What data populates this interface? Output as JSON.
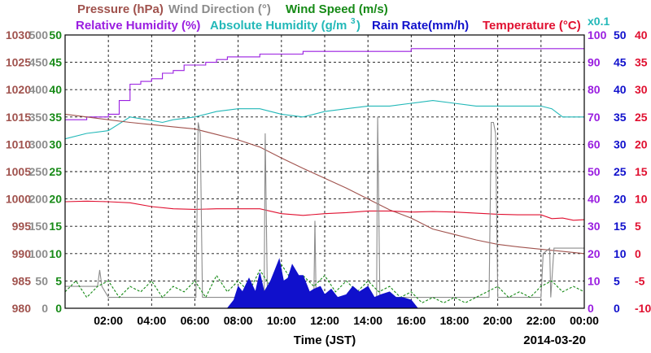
{
  "header": {
    "row1": [
      {
        "key": "pressure",
        "text": "Pressure (hPa)",
        "color": "#a0524d"
      },
      {
        "key": "wind_direction",
        "text": "Wind Direction (°)",
        "color": "#8c8c8c"
      },
      {
        "key": "wind_speed",
        "text": "Wind Speed (m/s)",
        "color": "#168a16"
      }
    ],
    "row2": [
      {
        "key": "relative_humidity",
        "text": "Relative Humidity (%)",
        "color": "#9a1ee0"
      },
      {
        "key": "absolute_humidity",
        "text": "Absolute Humidity (g/m",
        "sup": "3",
        "tail": ")",
        "color": "#22b8b8"
      },
      {
        "key": "rain_rate",
        "text": "Rain Rate(mm/h)",
        "color": "#1010cc"
      },
      {
        "key": "temperature",
        "text": "Temperature (°C)",
        "color": "#e01030"
      }
    ],
    "x01": {
      "text": "x0.1",
      "color": "#22b8b8"
    }
  },
  "footer": {
    "xlabel": "Time (JST)",
    "date": "2014-03-20"
  },
  "chart_data": {
    "type": "line",
    "x_unit": "hour",
    "xlim": [
      0,
      24
    ],
    "x_ticks": [
      2,
      4,
      6,
      8,
      10,
      12,
      14,
      16,
      18,
      20,
      22,
      24
    ],
    "x_tick_labels": [
      "02:00",
      "04:00",
      "06:00",
      "08:00",
      "10:00",
      "12:00",
      "14:00",
      "16:00",
      "18:00",
      "20:00",
      "22:00",
      "00:00"
    ],
    "grid": true,
    "axes": [
      {
        "name": "Pressure (hPa)",
        "side": "left",
        "color": "#a0524d",
        "min": 980,
        "max": 1030,
        "ticks": [
          980,
          985,
          990,
          995,
          1000,
          1005,
          1010,
          1015,
          1020,
          1025,
          1030
        ]
      },
      {
        "name": "Wind Direction (°)",
        "side": "left",
        "color": "#8c8c8c",
        "min": 0,
        "max": 500,
        "ticks": [
          0,
          50,
          100,
          150,
          200,
          250,
          300,
          350,
          400,
          450,
          500
        ]
      },
      {
        "name": "Wind Speed (m/s)",
        "side": "left",
        "color": "#168a16",
        "min": 0,
        "max": 50,
        "ticks": [
          0,
          5,
          10,
          15,
          20,
          25,
          30,
          35,
          40,
          45,
          50
        ]
      },
      {
        "name": "Relative Humidity (%)",
        "side": "right",
        "color": "#9a1ee0",
        "min": 0,
        "max": 100,
        "ticks": [
          0,
          10,
          20,
          30,
          40,
          50,
          60,
          70,
          80,
          90,
          100
        ]
      },
      {
        "name": "Rain Rate(mm/h)",
        "side": "right",
        "color": "#1010cc",
        "min": 0,
        "max": 50,
        "ticks": [
          0,
          5,
          10,
          15,
          20,
          25,
          30,
          35,
          40,
          45,
          50
        ]
      },
      {
        "name": "Temperature (°C)",
        "side": "right",
        "color": "#e01030",
        "min": -10,
        "max": 40,
        "ticks": [
          -10,
          -5,
          0,
          5,
          10,
          15,
          20,
          25,
          30,
          35,
          40
        ]
      }
    ],
    "series": [
      {
        "name": "Relative Humidity (%)",
        "axis": "Relative Humidity (%)",
        "color": "#9a1ee0",
        "style": "step",
        "x": [
          0,
          1,
          2,
          2.5,
          3,
          3.5,
          4,
          4.5,
          5,
          5.5,
          6,
          6.5,
          7,
          7.5,
          8,
          8.5,
          9,
          9.5,
          10,
          11,
          12,
          13,
          14,
          15,
          16,
          17,
          18,
          19,
          20,
          21,
          22,
          23,
          24
        ],
        "y": [
          69,
          70,
          71,
          76,
          82,
          83,
          84,
          86,
          87,
          89,
          89,
          90,
          91,
          92,
          92,
          92,
          93,
          93,
          93,
          94,
          94,
          94,
          94,
          94,
          95,
          95,
          95,
          95,
          95,
          95,
          95,
          95,
          95
        ]
      },
      {
        "name": "Absolute Humidity (g/m3) x0.1",
        "axis": "Relative Humidity (%)",
        "color": "#22b8b8",
        "style": "line",
        "x": [
          0,
          1,
          2,
          3,
          3.8,
          4.5,
          5,
          6,
          7,
          8,
          9,
          10,
          11,
          12,
          13,
          14,
          14.5,
          15,
          16,
          17,
          18,
          19,
          20,
          21,
          22,
          22.5,
          23,
          23.5,
          24
        ],
        "y": [
          62,
          64,
          65,
          70,
          69,
          68,
          69,
          70,
          72,
          73,
          73,
          71,
          70,
          72,
          73,
          74,
          74,
          74,
          75,
          76,
          75,
          74,
          74,
          74,
          74,
          73,
          70,
          70,
          70
        ]
      },
      {
        "name": "Pressure (hPa)",
        "axis": "Pressure (hPa)",
        "color": "#a0524d",
        "style": "line",
        "x": [
          0,
          1,
          2,
          3,
          4,
          5,
          6,
          7,
          8,
          9,
          10,
          11,
          12,
          13,
          14,
          15,
          16,
          17,
          18,
          19,
          20,
          21,
          22,
          23,
          24
        ],
        "y": [
          1015.5,
          1015,
          1014.5,
          1014,
          1013.6,
          1013.2,
          1012.8,
          1011.8,
          1010.8,
          1009.5,
          1007.5,
          1005.6,
          1003.8,
          1002,
          1000,
          998,
          996.5,
          994.5,
          993.5,
          992.5,
          991.7,
          991.2,
          990.8,
          990.4,
          990
        ]
      },
      {
        "name": "Temperature (°C)",
        "axis": "Temperature (°C)",
        "color": "#e01030",
        "style": "line",
        "x": [
          0,
          1,
          2,
          3,
          4,
          5,
          6,
          7,
          8,
          9,
          10,
          11,
          12,
          13,
          14,
          15,
          16,
          17,
          18,
          19,
          20,
          21,
          22,
          22.5,
          23,
          23.5,
          24
        ],
        "y": [
          9.5,
          9.6,
          9.5,
          9.3,
          8.6,
          8.2,
          8.1,
          8.2,
          8.2,
          8.2,
          7.3,
          7,
          7.3,
          7.5,
          7.8,
          7.8,
          7.6,
          7.7,
          7.6,
          7.4,
          7.2,
          7.1,
          7.1,
          6.4,
          6.5,
          6.1,
          6.2
        ]
      },
      {
        "name": "Wind Direction (°)",
        "axis": "Wind Direction (°)",
        "color": "#8c8c8c",
        "style": "line",
        "x": [
          0,
          0.3,
          1,
          1.5,
          1.6,
          1.7,
          2,
          6,
          6.05,
          6.15,
          6.25,
          6.35,
          7,
          8.5,
          9.2,
          9.25,
          9.35,
          9.4,
          10,
          11,
          11.5,
          11.55,
          11.6,
          11.9,
          12,
          13,
          14.4,
          14.45,
          14.55,
          14.6,
          15,
          18,
          19.6,
          19.7,
          19.8,
          19.9,
          20,
          20.1,
          20.2,
          22,
          22.1,
          22.4,
          22.45,
          22.6,
          22.8,
          24
        ],
        "y": [
          40,
          40,
          40,
          40,
          70,
          40,
          20,
          20,
          20,
          340,
          320,
          20,
          20,
          20,
          20,
          320,
          20,
          20,
          20,
          20,
          20,
          160,
          20,
          20,
          20,
          20,
          20,
          350,
          20,
          20,
          20,
          20,
          20,
          340,
          340,
          320,
          20,
          20,
          20,
          20,
          100,
          110,
          20,
          110,
          110,
          110
        ]
      },
      {
        "name": "Wind Speed (m/s)",
        "axis": "Wind Speed (m/s)",
        "color": "#168a16",
        "style": "dashed",
        "x": [
          0,
          0.5,
          1,
          1.5,
          2,
          2.5,
          3,
          3.5,
          4,
          4.5,
          5,
          5.5,
          6,
          6.5,
          7,
          7.5,
          8,
          8.5,
          9,
          9.5,
          10,
          10.5,
          11,
          11.5,
          12,
          12.5,
          13,
          13.5,
          14,
          14.5,
          15,
          15.5,
          16,
          16.5,
          17,
          17.5,
          18,
          18.5,
          19,
          19.5,
          20,
          20.5,
          21,
          21.5,
          22,
          22.5,
          23,
          23.5,
          24
        ],
        "y": [
          3,
          5,
          2,
          4,
          5,
          2,
          4,
          3,
          5,
          2,
          4,
          3,
          5,
          2,
          6,
          3,
          5,
          3,
          7,
          4,
          8,
          5,
          6,
          4,
          6,
          3,
          5,
          3,
          5,
          3,
          4,
          2,
          3,
          1,
          2,
          1,
          2,
          1,
          2,
          3,
          4,
          2,
          3,
          2,
          4,
          5,
          3,
          4,
          3
        ]
      },
      {
        "name": "Rain Rate(mm/h)",
        "axis": "Rain Rate(mm/h)",
        "color": "#1010cc",
        "style": "area",
        "x": [
          7.5,
          7.8,
          8,
          8.2,
          8.5,
          8.8,
          9,
          9.2,
          9.5,
          9.7,
          9.9,
          10.1,
          10.3,
          10.5,
          10.8,
          11,
          11.3,
          11.5,
          11.8,
          12,
          12.3,
          12.6,
          13,
          13.3,
          13.6,
          14,
          14.3,
          14.6,
          15,
          15.3,
          15.6,
          16,
          16.3
        ],
        "y": [
          0,
          1.5,
          4,
          3,
          5.5,
          3,
          6.5,
          3,
          5,
          7,
          9,
          5,
          5.5,
          8,
          6,
          6,
          3,
          3.5,
          4,
          2.5,
          3.5,
          2,
          2.5,
          4,
          3,
          4,
          2,
          2.5,
          3,
          2,
          2,
          1.5,
          0
        ]
      }
    ]
  }
}
